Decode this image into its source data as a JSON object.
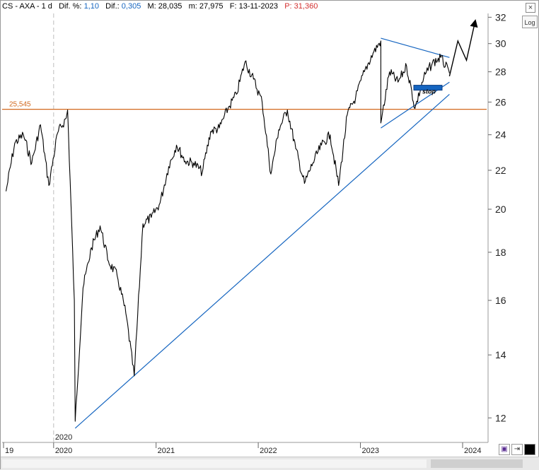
{
  "header": {
    "symbol": "CS - AXA - 1 d",
    "difpct_label": "Dif. %:",
    "difpct_value": "1,10",
    "dif_label": "Dif.:",
    "dif_value": "0,305",
    "max_label": "M:",
    "max_value": "28,035",
    "min_label": "m:",
    "min_value": "27,975",
    "date_label": "F:",
    "date_value": "13-11-2023",
    "price_label": "P:",
    "price_value": "31,360"
  },
  "buttons": {
    "log_label": "Log",
    "close_label": "×"
  },
  "colors": {
    "price": "#000000",
    "trendline": "#1565c0",
    "horizontal": "#d2691e",
    "header_value": "#1565c0",
    "header_price": "#d32f2f"
  },
  "chart_data": {
    "type": "line",
    "scale": "log",
    "ylim": [
      11.3,
      32.3
    ],
    "y_ticks": [
      12,
      14,
      16,
      18,
      20,
      22,
      24,
      26,
      28,
      30,
      32
    ],
    "x_ticks": [
      "19",
      "2020",
      "2021",
      "2022",
      "2023",
      "2024"
    ],
    "cursor_label": "2020",
    "series": [
      {
        "x": [
          "2019-07",
          "2019-08",
          "2019-09",
          "2019-10",
          "2019-11",
          "2019-12",
          "2020-01",
          "2020-02",
          "2020-02-20",
          "2020-03",
          "2020-03-18",
          "2020-04",
          "2020-05",
          "2020-06",
          "2020-07",
          "2020-08",
          "2020-09",
          "2020-10",
          "2020-11",
          "2020-12",
          "2021-01",
          "2021-02",
          "2021-03",
          "2021-04",
          "2021-05",
          "2021-06",
          "2021-07",
          "2021-08",
          "2021-09",
          "2021-10",
          "2021-11",
          "2021-12",
          "2022-01",
          "2022-02",
          "2022-03",
          "2022-04",
          "2022-05",
          "2022-06",
          "2022-07",
          "2022-08",
          "2022-09",
          "2022-10",
          "2022-11",
          "2022-12",
          "2023-01",
          "2023-02",
          "2023-03",
          "2023-03-15",
          "2023-04",
          "2023-05",
          "2023-06",
          "2023-07",
          "2023-08",
          "2023-09",
          "2023-10",
          "2023-11"
        ],
        "values": [
          20.9,
          23.5,
          24.0,
          22.4,
          24.6,
          21.2,
          24.1,
          25.0,
          25.5,
          16.0,
          11.9,
          16.5,
          18.2,
          19.2,
          17.6,
          17.0,
          15.5,
          13.3,
          19.3,
          19.6,
          20.3,
          22.2,
          23.4,
          22.5,
          22.4,
          21.9,
          24.2,
          24.4,
          25.6,
          26.5,
          28.7,
          27.5,
          26.0,
          21.8,
          24.3,
          25.5,
          23.2,
          21.3,
          22.4,
          23.4,
          24.0,
          21.2,
          25.2,
          26.3,
          28.0,
          29.3,
          30.2,
          24.7,
          28.0,
          27.3,
          28.4,
          25.6,
          27.6,
          28.6,
          29.0,
          27.9
        ]
      }
    ],
    "horizontal_line": {
      "value": 25.545,
      "label": "25,545"
    },
    "annotations": [
      {
        "text": "stop",
        "value": 27.0
      }
    ],
    "trendlines": [
      {
        "from": [
          "2020-03-18",
          11.7
        ],
        "to": [
          "2023-11",
          26.5
        ]
      },
      {
        "from": [
          "2023-03-15",
          24.4
        ],
        "to": [
          "2023-11",
          27.3
        ]
      },
      {
        "from": [
          "2023-03",
          30.4
        ],
        "to": [
          "2023-11",
          29.0
        ]
      }
    ],
    "projection": [
      {
        "x": "2023-11",
        "y": 27.7
      },
      {
        "x": "2023-12",
        "y": 30.2
      },
      {
        "x": "2024-01",
        "y": 28.8
      },
      {
        "x": "2024-02",
        "y": 31.7
      }
    ]
  }
}
